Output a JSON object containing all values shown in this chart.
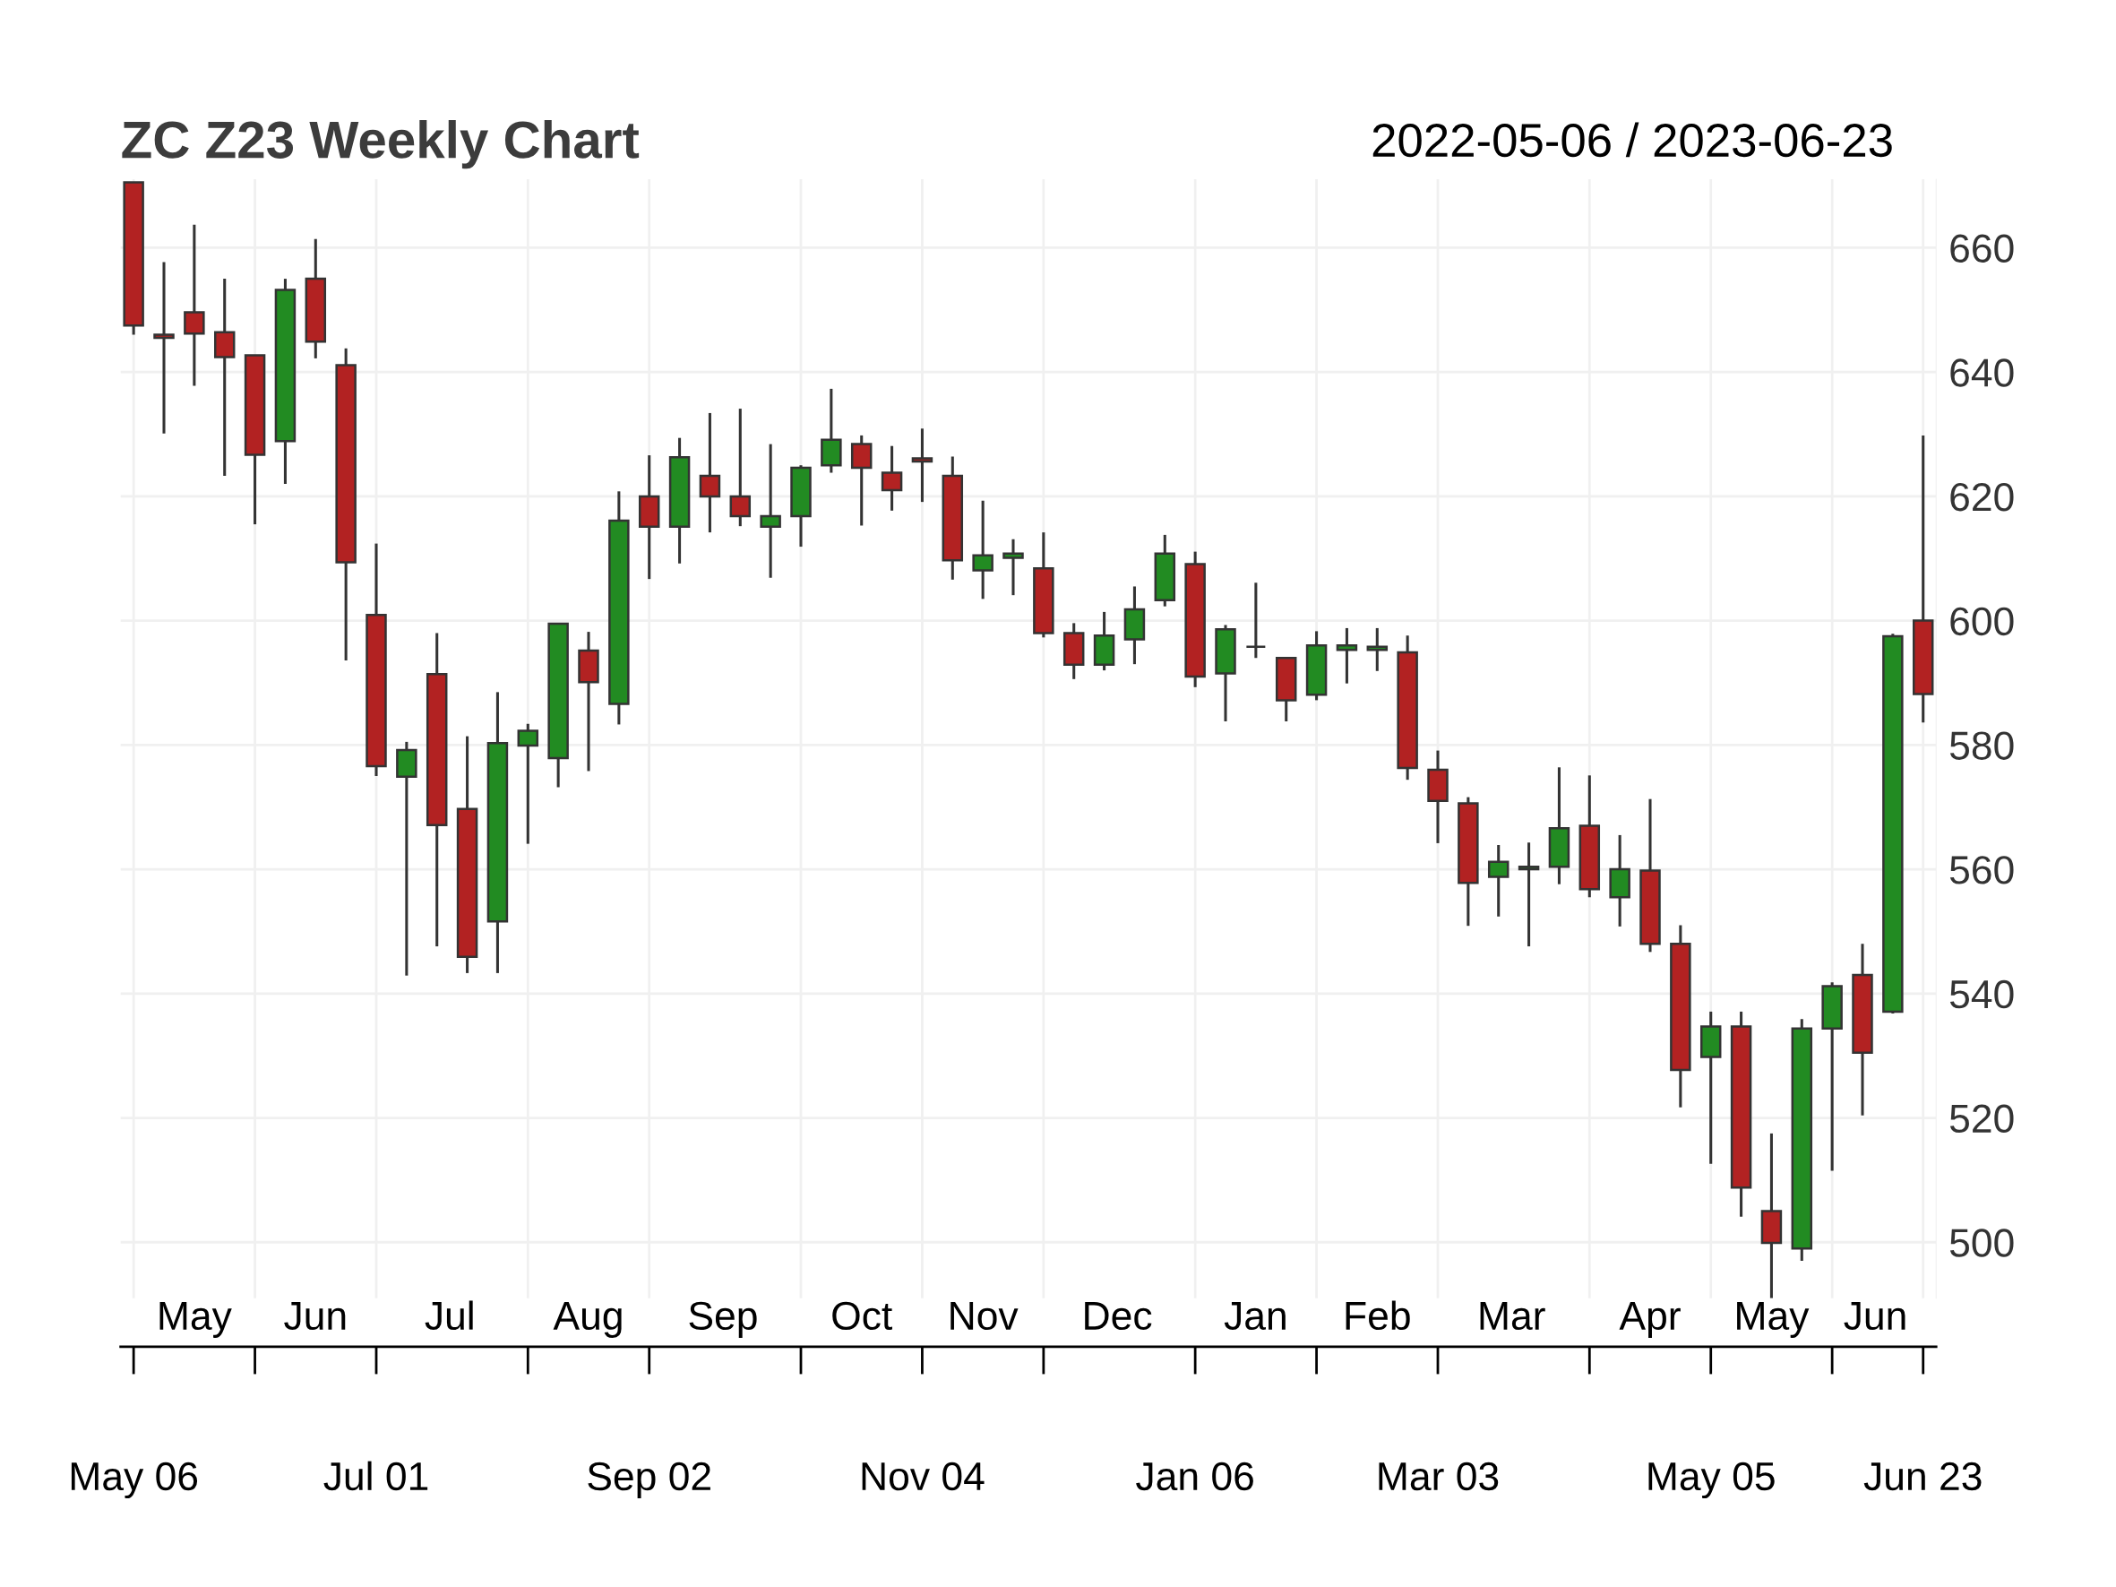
{
  "chart_data": {
    "type": "candlestick",
    "title": "ZC Z23 Weekly Chart",
    "subtitle": "2022-05-06 / 2023-06-23",
    "x": [
      "2022-05-06",
      "2022-05-13",
      "2022-05-20",
      "2022-05-27",
      "2022-06-03",
      "2022-06-10",
      "2022-06-17",
      "2022-06-24",
      "2022-07-01",
      "2022-07-08",
      "2022-07-15",
      "2022-07-22",
      "2022-07-29",
      "2022-08-05",
      "2022-08-12",
      "2022-08-19",
      "2022-08-26",
      "2022-09-02",
      "2022-09-09",
      "2022-09-16",
      "2022-09-23",
      "2022-09-30",
      "2022-10-07",
      "2022-10-14",
      "2022-10-21",
      "2022-10-28",
      "2022-11-04",
      "2022-11-11",
      "2022-11-18",
      "2022-11-25",
      "2022-12-02",
      "2022-12-09",
      "2022-12-16",
      "2022-12-23",
      "2022-12-30",
      "2023-01-06",
      "2023-01-13",
      "2023-01-20",
      "2023-01-27",
      "2023-02-03",
      "2023-02-10",
      "2023-02-17",
      "2023-02-24",
      "2023-03-03",
      "2023-03-10",
      "2023-03-17",
      "2023-03-24",
      "2023-03-31",
      "2023-04-07",
      "2023-04-14",
      "2023-04-21",
      "2023-04-28",
      "2023-05-05",
      "2023-05-12",
      "2023-05-19",
      "2023-05-26",
      "2023-06-02",
      "2023-06-09",
      "2023-06-16",
      "2023-06-23"
    ],
    "ohlc": [
      [
        670.5,
        670.5,
        646,
        647.5
      ],
      [
        646,
        657.7,
        630.1,
        645.5
      ],
      [
        649.6,
        663.7,
        637.8,
        646.2
      ],
      [
        646.4,
        655,
        623.3,
        642.4
      ],
      [
        642.7,
        642.7,
        615.5,
        626.7
      ],
      [
        628.9,
        655,
        622,
        653.2
      ],
      [
        655,
        661.4,
        642.2,
        644.9
      ],
      [
        641.1,
        643.8,
        593.6,
        609.4
      ],
      [
        600.9,
        612.4,
        575,
        576.6
      ],
      [
        574.9,
        580.5,
        542.9,
        579.2
      ],
      [
        591.4,
        598,
        547.6,
        567.1
      ],
      [
        569.7,
        581.4,
        543.3,
        545.9
      ],
      [
        551.6,
        588.5,
        543.3,
        580.3
      ],
      [
        579.9,
        583.4,
        564.1,
        582.3
      ],
      [
        577.9,
        599.5,
        573.2,
        599.5
      ],
      [
        595.2,
        598.2,
        575.8,
        590.1
      ],
      [
        586.6,
        620.8,
        583.3,
        616.1
      ],
      [
        620,
        626.6,
        606.7,
        615.1
      ],
      [
        615.1,
        629.4,
        609.2,
        626.3
      ],
      [
        623.3,
        633.4,
        614.2,
        620
      ],
      [
        620,
        634.1,
        615.2,
        616.8
      ],
      [
        615.1,
        628.4,
        606.9,
        616.8
      ],
      [
        616.8,
        625,
        611.9,
        624.6
      ],
      [
        625,
        637.3,
        623.8,
        629.1
      ],
      [
        628.4,
        629.8,
        615.3,
        624.6
      ],
      [
        623.8,
        628.1,
        617.7,
        621
      ],
      [
        626.1,
        630.9,
        619.1,
        625.6
      ],
      [
        623.3,
        626.4,
        606.6,
        609.7
      ],
      [
        608.1,
        619.3,
        603.5,
        610.5
      ],
      [
        610.1,
        613.1,
        604.1,
        610.8
      ],
      [
        608.4,
        614.2,
        597.3,
        598
      ],
      [
        598,
        599.6,
        590.6,
        592.9
      ],
      [
        592.9,
        601.4,
        592,
        597.6
      ],
      [
        597,
        605.5,
        593,
        601.8
      ],
      [
        603.3,
        613.8,
        602.3,
        610.8
      ],
      [
        609.1,
        611.1,
        589.3,
        591
      ],
      [
        591.5,
        599.3,
        583.8,
        598.6
      ],
      [
        595.8,
        606.1,
        594,
        595.8
      ],
      [
        594,
        594,
        583.8,
        587.2
      ],
      [
        588.1,
        598.3,
        587.2,
        596
      ],
      [
        595.3,
        598.8,
        589.9,
        596
      ],
      [
        595.3,
        598.8,
        591.9,
        595.8
      ],
      [
        594.9,
        597.6,
        574.4,
        576.3
      ],
      [
        576,
        579.1,
        564.2,
        571
      ],
      [
        570.6,
        571.6,
        550.9,
        557.8
      ],
      [
        558.8,
        563.9,
        552.4,
        561.2
      ],
      [
        560,
        564.3,
        547.6,
        560.4
      ],
      [
        560.4,
        576.4,
        557.6,
        566.6
      ],
      [
        567,
        575.1,
        555.5,
        556.8
      ],
      [
        555.5,
        565.5,
        550.8,
        560
      ],
      [
        559.8,
        571.3,
        546.7,
        548
      ],
      [
        548,
        551,
        521.7,
        527.7
      ],
      [
        529.8,
        537.1,
        512.6,
        534.7
      ],
      [
        534.7,
        537.1,
        504.1,
        508.8
      ],
      [
        505,
        517.5,
        491,
        499.9
      ],
      [
        499,
        535.9,
        497,
        534.4
      ],
      [
        534.4,
        541.8,
        511.5,
        541.2
      ],
      [
        543,
        548,
        520.4,
        530.5
      ],
      [
        537.1,
        597.9,
        536.8,
        597.5
      ],
      [
        600,
        629.8,
        583.6,
        588.2
      ]
    ],
    "colors": [
      "#b22222",
      "#b22222",
      "#b22222",
      "#b22222",
      "#b22222",
      "#228b22",
      "#b22222",
      "#b22222",
      "#b22222",
      "#228b22",
      "#b22222",
      "#b22222",
      "#228b22",
      "#228b22",
      "#228b22",
      "#b22222",
      "#228b22",
      "#b22222",
      "#228b22",
      "#b22222",
      "#b22222",
      "#228b22",
      "#228b22",
      "#228b22",
      "#b22222",
      "#b22222",
      "#b22222",
      "#b22222",
      "#228b22",
      "#228b22",
      "#b22222",
      "#b22222",
      "#228b22",
      "#228b22",
      "#228b22",
      "#b22222",
      "#228b22",
      "#333333",
      "#b22222",
      "#228b22",
      "#228b22",
      "#228b22",
      "#b22222",
      "#b22222",
      "#b22222",
      "#228b22",
      "#228b22",
      "#228b22",
      "#b22222",
      "#228b22",
      "#b22222",
      "#b22222",
      "#228b22",
      "#b22222",
      "#b22222",
      "#228b22",
      "#228b22",
      "#b22222",
      "#228b22",
      "#b22222"
    ],
    "xlim": [
      "2022-05-03",
      "2023-06-26"
    ],
    "x2lim": [
      "2022-05-03",
      "2023-06-26"
    ],
    "xticks": [
      {
        "value": "2022-05-06",
        "label": "May 06"
      },
      {
        "value": "2022-06-03",
        "label": null
      },
      {
        "value": "2022-07-01",
        "label": "Jul 01"
      },
      {
        "value": "2022-08-05",
        "label": null
      },
      {
        "value": "2022-09-02",
        "label": "Sep 02"
      },
      {
        "value": "2022-10-07",
        "label": null
      },
      {
        "value": "2022-11-04",
        "label": "Nov 04"
      },
      {
        "value": "2022-12-02",
        "label": null
      },
      {
        "value": "2023-01-06",
        "label": "Jan 06"
      },
      {
        "value": "2023-02-03",
        "label": null
      },
      {
        "value": "2023-03-03",
        "label": "Mar 03"
      },
      {
        "value": "2023-04-07",
        "label": null
      },
      {
        "value": "2023-05-05",
        "label": "May 05"
      },
      {
        "value": "2023-06-02",
        "label": null
      },
      {
        "value": "2023-06-23",
        "label": "Jun 23"
      }
    ],
    "x2ticks": [
      {
        "value": "2022-05-20",
        "label": "May"
      },
      {
        "value": "2022-06-17",
        "label": "Jun"
      },
      {
        "value": "2022-07-18",
        "label": "Jul"
      },
      {
        "value": "2022-08-19",
        "label": "Aug"
      },
      {
        "value": "2022-09-19",
        "label": "Sep"
      },
      {
        "value": "2022-10-21",
        "label": "Oct"
      },
      {
        "value": "2022-11-18",
        "label": "Nov"
      },
      {
        "value": "2022-12-19",
        "label": "Dec"
      },
      {
        "value": "2023-01-20",
        "label": "Jan"
      },
      {
        "value": "2023-02-17",
        "label": "Feb"
      },
      {
        "value": "2023-03-20",
        "label": "Mar"
      },
      {
        "value": "2023-04-21",
        "label": "Apr"
      },
      {
        "value": "2023-05-19",
        "label": "May"
      },
      {
        "value": "2023-06-12",
        "label": "Jun"
      }
    ],
    "ylim": [
      491,
      671
    ],
    "yticks": [
      500,
      520,
      540,
      560,
      580,
      600,
      620,
      640,
      660
    ],
    "grid": true
  }
}
